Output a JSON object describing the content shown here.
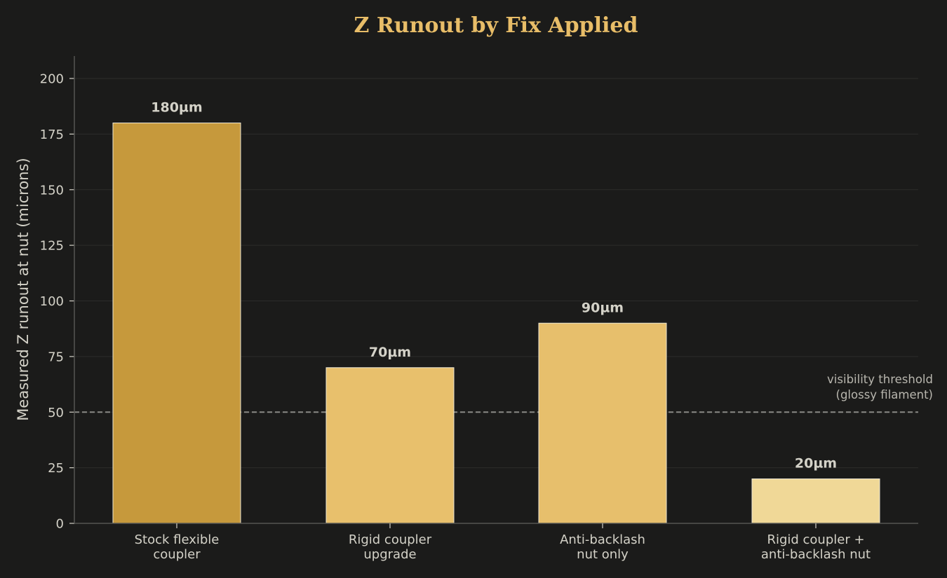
{
  "chart_data": {
    "type": "bar",
    "title": "Z Runout by Fix Applied",
    "xlabel": "",
    "ylabel": "Measured Z runout at nut (microns)",
    "ylim": [
      0,
      210
    ],
    "yticks": [
      0,
      25,
      50,
      75,
      100,
      125,
      150,
      175,
      200
    ],
    "grid": true,
    "categories": [
      [
        "Stock flexible",
        "coupler"
      ],
      [
        "Rigid coupler",
        "upgrade"
      ],
      [
        "Anti-backlash",
        "nut only"
      ],
      [
        "Rigid coupler +",
        "anti-backlash nut"
      ]
    ],
    "values": [
      180,
      70,
      90,
      20
    ],
    "value_labels": [
      "180µm",
      "70µm",
      "90µm",
      "20µm"
    ],
    "bar_colors": [
      "#c6993c",
      "#e8c06c",
      "#e7bf6c",
      "#f0d897"
    ],
    "reference_line": {
      "value": 50,
      "label": [
        "visibility threshold",
        "(glossy filament)"
      ]
    },
    "colors": {
      "background": "#1b1b1a",
      "title": "#e8bd68",
      "text": "#d4d2c8",
      "ref_text": "#b8b6ae",
      "axis": "#555552",
      "grid": "#2c2c2a",
      "ref_line": "#8a8a86",
      "bar_edge": "#ece6d2"
    }
  }
}
